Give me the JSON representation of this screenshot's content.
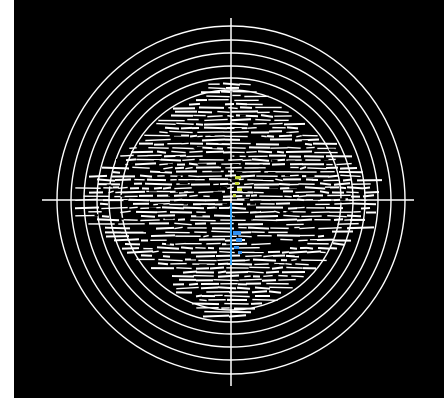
{
  "window": {
    "title": ""
  },
  "plot": {
    "background": "#000000",
    "foreground": "#ffffff",
    "rings": [
      1,
      2,
      3,
      4,
      5,
      6
    ],
    "crosshair": true,
    "marker_colors": {
      "upper": "#c6d83a",
      "lower": "#2f8ff0",
      "axis": "#34a7ff"
    }
  }
}
